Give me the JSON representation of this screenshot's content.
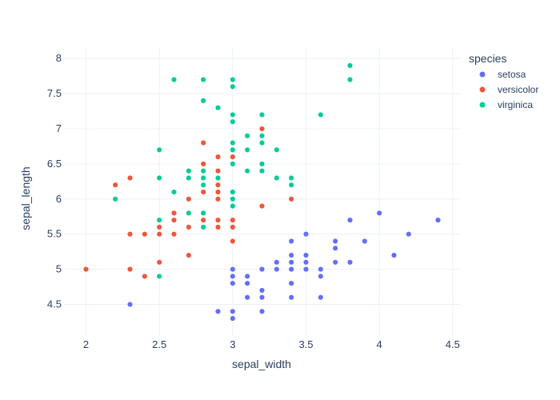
{
  "chart_data": {
    "type": "scatter",
    "xlabel": "sepal_width",
    "ylabel": "sepal_length",
    "xlim": [
      1.85,
      4.55
    ],
    "ylim": [
      4.05,
      8.15
    ],
    "xticks": [
      2,
      2.5,
      3,
      3.5,
      4,
      4.5
    ],
    "yticks": [
      4.5,
      5,
      5.5,
      6,
      6.5,
      7,
      7.5,
      8
    ],
    "grid": true,
    "legend_title": "species",
    "legend_position": "top-right",
    "series": [
      {
        "name": "setosa",
        "color": "#636efa",
        "points": [
          [
            3.5,
            5.1
          ],
          [
            3.0,
            4.9
          ],
          [
            3.2,
            4.7
          ],
          [
            3.1,
            4.6
          ],
          [
            3.6,
            5.0
          ],
          [
            3.9,
            5.4
          ],
          [
            3.4,
            4.6
          ],
          [
            3.4,
            5.0
          ],
          [
            2.9,
            4.4
          ],
          [
            3.1,
            4.9
          ],
          [
            3.7,
            5.4
          ],
          [
            3.4,
            4.8
          ],
          [
            3.0,
            4.8
          ],
          [
            3.0,
            4.3
          ],
          [
            4.0,
            5.8
          ],
          [
            4.4,
            5.7
          ],
          [
            3.9,
            5.4
          ],
          [
            3.5,
            5.1
          ],
          [
            3.8,
            5.7
          ],
          [
            3.8,
            5.1
          ],
          [
            3.4,
            5.4
          ],
          [
            3.7,
            5.1
          ],
          [
            3.6,
            4.6
          ],
          [
            3.3,
            5.1
          ],
          [
            3.4,
            4.8
          ],
          [
            3.0,
            5.0
          ],
          [
            3.4,
            5.0
          ],
          [
            3.5,
            5.2
          ],
          [
            3.4,
            5.2
          ],
          [
            3.2,
            4.7
          ],
          [
            3.1,
            4.8
          ],
          [
            3.4,
            5.4
          ],
          [
            4.1,
            5.2
          ],
          [
            4.2,
            5.5
          ],
          [
            3.1,
            4.9
          ],
          [
            3.2,
            5.0
          ],
          [
            3.5,
            5.5
          ],
          [
            3.6,
            4.9
          ],
          [
            3.0,
            4.4
          ],
          [
            3.4,
            5.1
          ],
          [
            3.5,
            5.0
          ],
          [
            2.3,
            4.5
          ],
          [
            3.2,
            4.4
          ],
          [
            3.5,
            5.0
          ],
          [
            3.8,
            5.1
          ],
          [
            3.0,
            4.8
          ],
          [
            3.8,
            5.1
          ],
          [
            3.2,
            4.6
          ],
          [
            3.7,
            5.3
          ],
          [
            3.3,
            5.0
          ]
        ]
      },
      {
        "name": "versicolor",
        "color": "#ef553b",
        "points": [
          [
            3.2,
            7.0
          ],
          [
            3.2,
            6.4
          ],
          [
            3.1,
            6.9
          ],
          [
            2.3,
            5.5
          ],
          [
            2.8,
            6.5
          ],
          [
            2.8,
            5.7
          ],
          [
            3.3,
            6.3
          ],
          [
            2.4,
            4.9
          ],
          [
            2.9,
            6.6
          ],
          [
            2.7,
            5.2
          ],
          [
            2.0,
            5.0
          ],
          [
            3.0,
            5.9
          ],
          [
            2.2,
            6.0
          ],
          [
            2.9,
            6.1
          ],
          [
            2.9,
            5.6
          ],
          [
            3.1,
            6.7
          ],
          [
            3.0,
            5.6
          ],
          [
            2.7,
            5.8
          ],
          [
            2.2,
            6.2
          ],
          [
            2.5,
            5.6
          ],
          [
            3.2,
            5.9
          ],
          [
            2.8,
            6.1
          ],
          [
            2.5,
            6.3
          ],
          [
            2.8,
            6.1
          ],
          [
            2.9,
            6.4
          ],
          [
            3.0,
            6.6
          ],
          [
            2.8,
            6.8
          ],
          [
            3.0,
            6.7
          ],
          [
            2.9,
            6.0
          ],
          [
            2.6,
            5.7
          ],
          [
            2.4,
            5.5
          ],
          [
            2.4,
            5.5
          ],
          [
            2.7,
            5.8
          ],
          [
            2.7,
            6.0
          ],
          [
            3.0,
            5.4
          ],
          [
            3.4,
            6.0
          ],
          [
            3.1,
            6.7
          ],
          [
            2.3,
            6.3
          ],
          [
            3.0,
            5.6
          ],
          [
            2.5,
            5.5
          ],
          [
            2.6,
            5.5
          ],
          [
            3.0,
            6.1
          ],
          [
            2.6,
            5.8
          ],
          [
            2.3,
            5.0
          ],
          [
            2.7,
            5.6
          ],
          [
            3.0,
            5.7
          ],
          [
            2.9,
            5.7
          ],
          [
            2.9,
            6.2
          ],
          [
            2.5,
            5.1
          ],
          [
            2.8,
            5.7
          ]
        ]
      },
      {
        "name": "virginica",
        "color": "#00cc96",
        "points": [
          [
            3.3,
            6.3
          ],
          [
            2.7,
            5.8
          ],
          [
            3.0,
            7.1
          ],
          [
            2.9,
            6.3
          ],
          [
            3.0,
            6.5
          ],
          [
            3.0,
            7.6
          ],
          [
            2.5,
            4.9
          ],
          [
            2.9,
            7.3
          ],
          [
            2.5,
            6.7
          ],
          [
            3.6,
            7.2
          ],
          [
            3.2,
            6.5
          ],
          [
            2.7,
            6.4
          ],
          [
            3.0,
            6.8
          ],
          [
            2.5,
            5.7
          ],
          [
            2.8,
            5.8
          ],
          [
            3.2,
            6.4
          ],
          [
            3.0,
            6.5
          ],
          [
            3.8,
            7.7
          ],
          [
            2.6,
            7.7
          ],
          [
            2.2,
            6.0
          ],
          [
            3.2,
            6.9
          ],
          [
            2.8,
            5.6
          ],
          [
            2.8,
            7.7
          ],
          [
            2.7,
            6.3
          ],
          [
            3.3,
            6.7
          ],
          [
            3.2,
            7.2
          ],
          [
            2.8,
            6.2
          ],
          [
            3.0,
            6.1
          ],
          [
            2.8,
            6.4
          ],
          [
            3.0,
            7.2
          ],
          [
            2.8,
            7.4
          ],
          [
            3.8,
            7.9
          ],
          [
            2.8,
            6.4
          ],
          [
            2.8,
            6.3
          ],
          [
            2.6,
            6.1
          ],
          [
            3.0,
            7.7
          ],
          [
            3.4,
            6.3
          ],
          [
            3.1,
            6.4
          ],
          [
            3.0,
            6.0
          ],
          [
            3.1,
            6.9
          ],
          [
            3.1,
            6.7
          ],
          [
            3.1,
            6.9
          ],
          [
            2.7,
            5.8
          ],
          [
            3.2,
            6.8
          ],
          [
            3.3,
            6.7
          ],
          [
            3.0,
            6.7
          ],
          [
            2.5,
            6.3
          ],
          [
            3.0,
            6.5
          ],
          [
            3.4,
            6.2
          ],
          [
            3.0,
            5.9
          ]
        ]
      }
    ]
  }
}
